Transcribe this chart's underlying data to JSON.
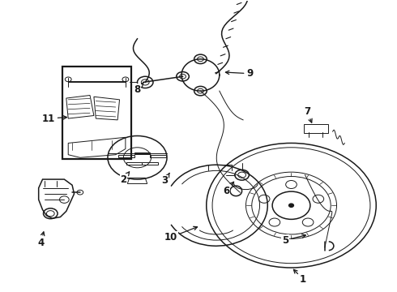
{
  "background_color": "#ffffff",
  "line_color": "#1a1a1a",
  "figsize": [
    4.9,
    3.6
  ],
  "dpi": 100,
  "image_data": "target_image"
}
